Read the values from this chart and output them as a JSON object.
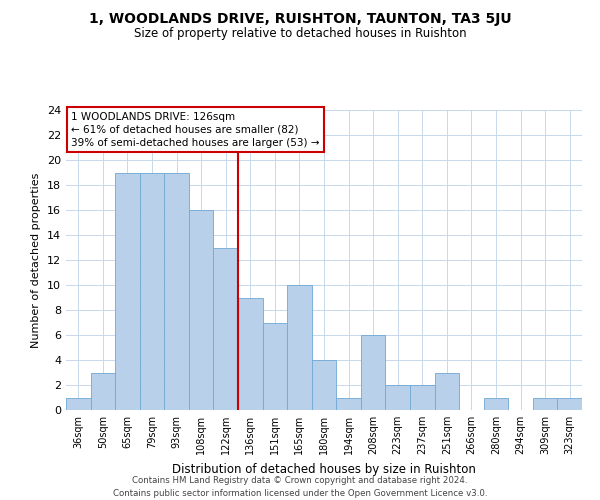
{
  "title": "1, WOODLANDS DRIVE, RUISHTON, TAUNTON, TA3 5JU",
  "subtitle": "Size of property relative to detached houses in Ruishton",
  "xlabel": "Distribution of detached houses by size in Ruishton",
  "ylabel": "Number of detached properties",
  "categories": [
    "36sqm",
    "50sqm",
    "65sqm",
    "79sqm",
    "93sqm",
    "108sqm",
    "122sqm",
    "136sqm",
    "151sqm",
    "165sqm",
    "180sqm",
    "194sqm",
    "208sqm",
    "223sqm",
    "237sqm",
    "251sqm",
    "266sqm",
    "280sqm",
    "294sqm",
    "309sqm",
    "323sqm"
  ],
  "values": [
    1,
    3,
    19,
    19,
    19,
    16,
    13,
    9,
    7,
    10,
    4,
    1,
    6,
    2,
    2,
    3,
    0,
    1,
    0,
    1,
    1
  ],
  "bar_color": "#b8d0ea",
  "bar_edgecolor": "#6fa8d4",
  "property_label": "1 WOODLANDS DRIVE: 126sqm",
  "annotation_line1": "← 61% of detached houses are smaller (82)",
  "annotation_line2": "39% of semi-detached houses are larger (53) →",
  "red_line_color": "#cc0000",
  "annotation_box_edgecolor": "#cc0000",
  "ylim": [
    0,
    24
  ],
  "yticks": [
    0,
    2,
    4,
    6,
    8,
    10,
    12,
    14,
    16,
    18,
    20,
    22,
    24
  ],
  "footer_line1": "Contains HM Land Registry data © Crown copyright and database right 2024.",
  "footer_line2": "Contains public sector information licensed under the Open Government Licence v3.0.",
  "background_color": "#ffffff",
  "grid_color": "#c8d8ec"
}
